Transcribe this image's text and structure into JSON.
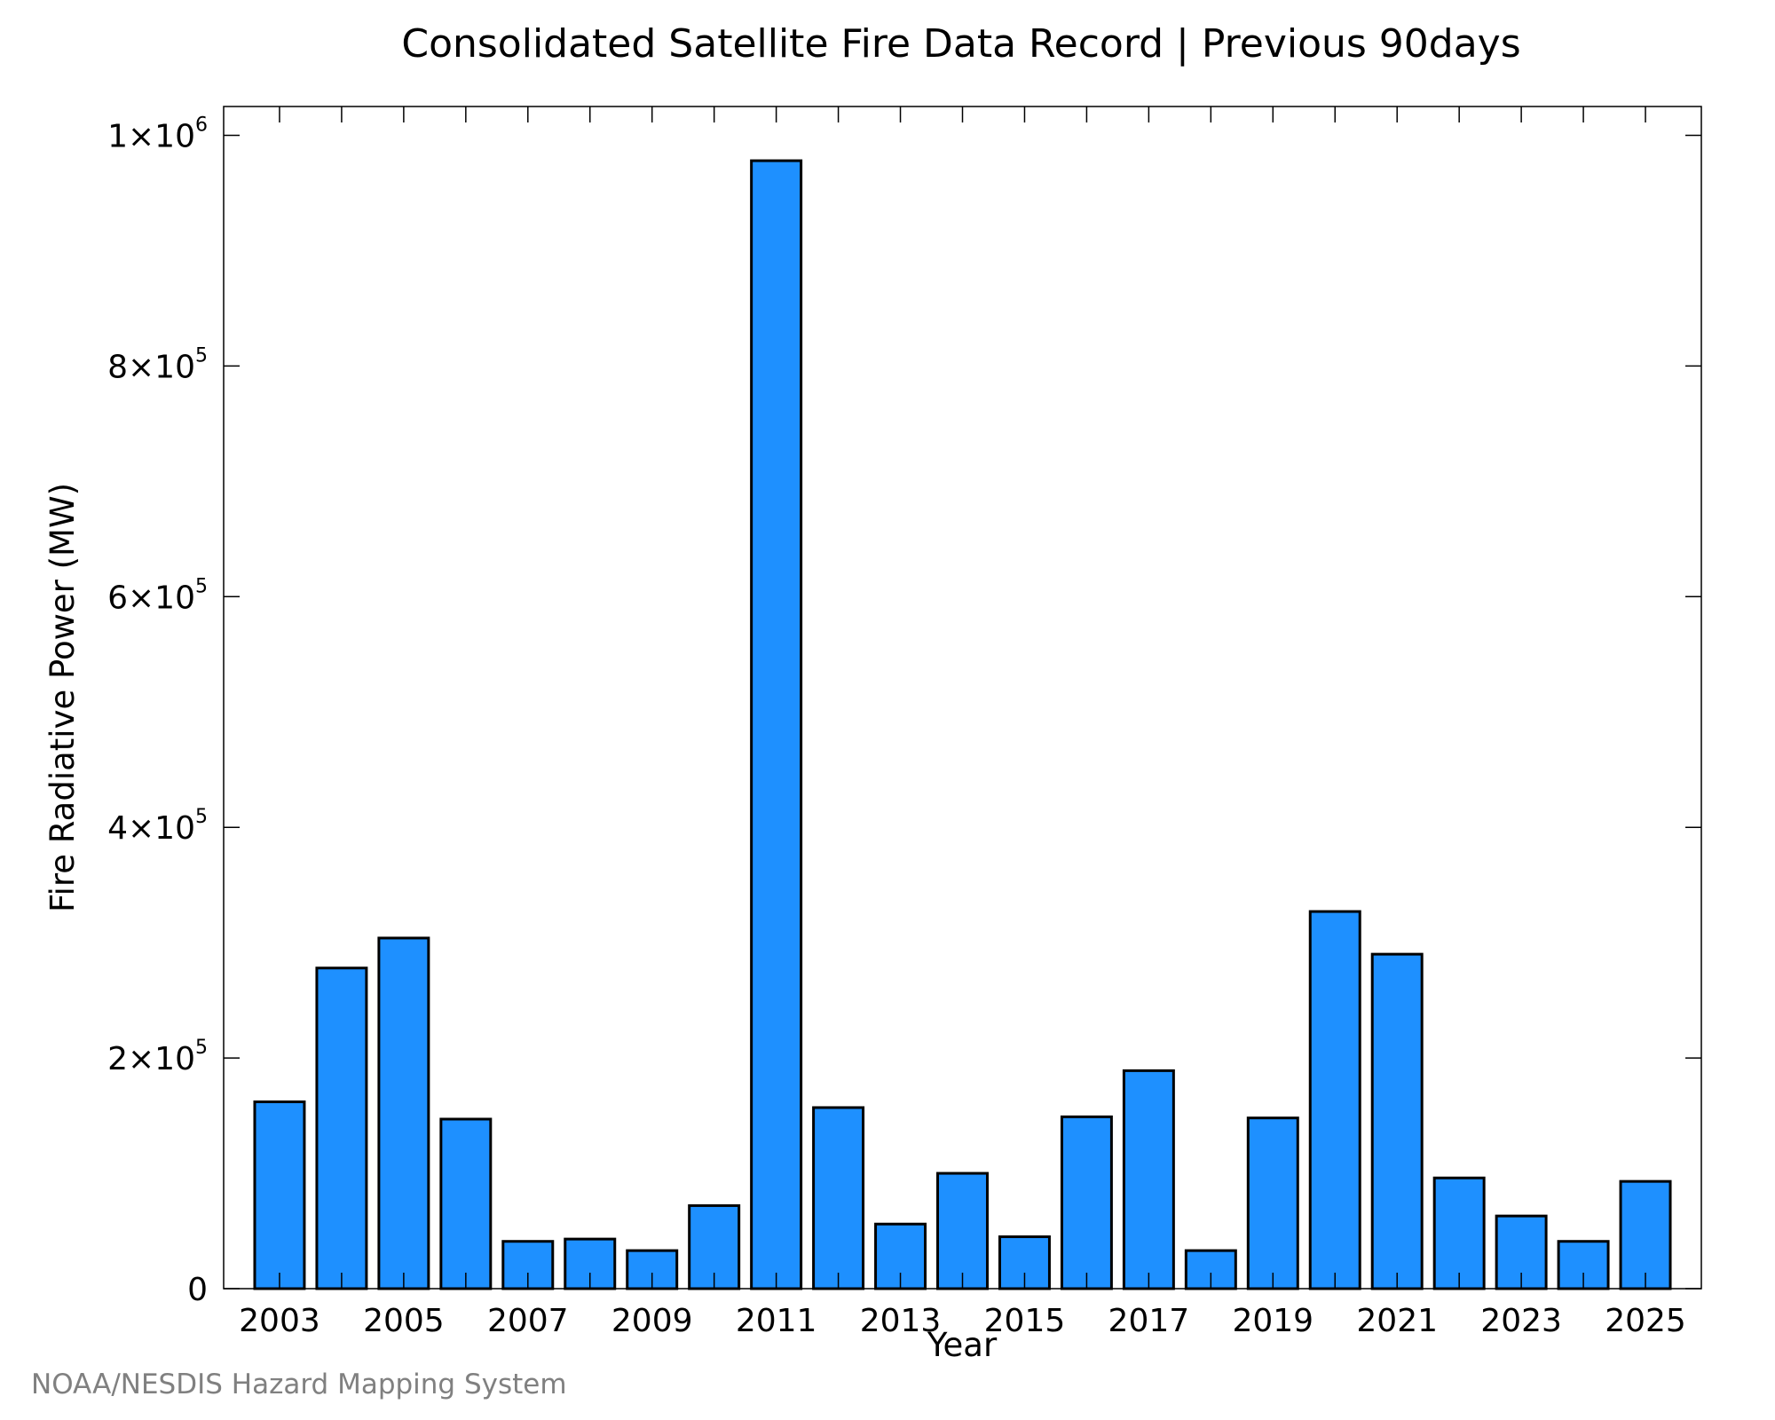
{
  "credit": "NOAA/NESDIS Hazard Mapping System",
  "colors": {
    "bar": "#1e90ff",
    "bar_stroke": "#000000",
    "credit": "#808080"
  },
  "chart_data": {
    "type": "bar",
    "title": "Consolidated Satellite Fire Data Record | Previous 90days",
    "xlabel": "Year",
    "ylabel": "Fire Radiative Power (MW)",
    "xlim": [
      2002.1,
      2025.9
    ],
    "ylim": [
      0,
      1025000
    ],
    "grid": false,
    "categories": [
      "2003",
      "2004",
      "2005",
      "2006",
      "2007",
      "2008",
      "2009",
      "2010",
      "2011",
      "2012",
      "2013",
      "2014",
      "2015",
      "2016",
      "2017",
      "2018",
      "2019",
      "2020",
      "2021",
      "2022",
      "2023",
      "2024",
      "2025"
    ],
    "values": [
      162000,
      278000,
      304000,
      147000,
      41000,
      43000,
      33000,
      72000,
      978000,
      157000,
      56000,
      100000,
      45000,
      149000,
      189000,
      33000,
      148000,
      327000,
      290000,
      96000,
      63000,
      41000,
      93000
    ],
    "x_ticks": [
      {
        "value": 2003,
        "label": "2003"
      },
      {
        "value": 2005,
        "label": "2005"
      },
      {
        "value": 2007,
        "label": "2007"
      },
      {
        "value": 2009,
        "label": "2009"
      },
      {
        "value": 2011,
        "label": "2011"
      },
      {
        "value": 2013,
        "label": "2013"
      },
      {
        "value": 2015,
        "label": "2015"
      },
      {
        "value": 2017,
        "label": "2017"
      },
      {
        "value": 2019,
        "label": "2019"
      },
      {
        "value": 2021,
        "label": "2021"
      },
      {
        "value": 2023,
        "label": "2023"
      },
      {
        "value": 2025,
        "label": "2025"
      }
    ],
    "minor_x_ticks": [
      2004,
      2006,
      2008,
      2010,
      2012,
      2014,
      2016,
      2018,
      2020,
      2022,
      2024
    ],
    "y_ticks": [
      {
        "value": 0,
        "label": "0",
        "exp": ""
      },
      {
        "value": 200000,
        "label": "2×10",
        "exp": "5"
      },
      {
        "value": 400000,
        "label": "4×10",
        "exp": "5"
      },
      {
        "value": 600000,
        "label": "6×10",
        "exp": "5"
      },
      {
        "value": 800000,
        "label": "8×10",
        "exp": "5"
      },
      {
        "value": 1000000,
        "label": "1×10",
        "exp": "6"
      }
    ]
  }
}
